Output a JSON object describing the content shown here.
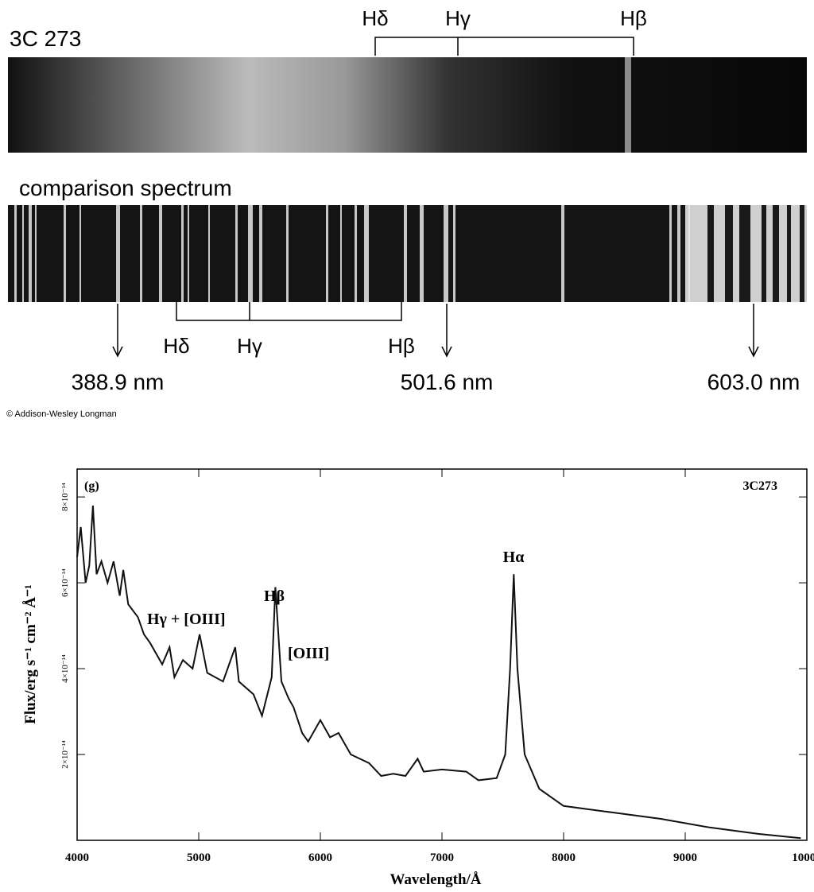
{
  "figure": {
    "top_label": "3C 273",
    "top_lines": [
      "Hδ",
      "Hγ",
      "Hβ"
    ],
    "comparison_label": "comparison spectrum",
    "comparison_lines": [
      "Hδ",
      "Hγ",
      "Hβ"
    ],
    "reference_lines": [
      "388.9 nm",
      "501.6 nm",
      "603.0 nm"
    ],
    "credit": "© Addison-Wesley Longman"
  },
  "chart_data": {
    "type": "line",
    "xlabel": "Wavelength/Å",
    "ylabel": "Flux/erg s⁻¹ cm⁻² Å⁻¹",
    "annotations": [
      "(g)",
      "3C273",
      "Hγ + [OIII]",
      "Hβ",
      "[OIII]",
      "Hα"
    ],
    "color": "#111111",
    "x": [
      4000,
      4030,
      4070,
      4100,
      4130,
      4160,
      4200,
      4250,
      4300,
      4350,
      4380,
      4420,
      4500,
      4550,
      4600,
      4700,
      4760,
      4800,
      4870,
      4950,
      5007,
      5070,
      5200,
      5300,
      5330,
      5450,
      5520,
      5600,
      5630,
      5680,
      5740,
      5780,
      5850,
      5900,
      6000,
      6080,
      6150,
      6250,
      6400,
      6500,
      6600,
      6700,
      6800,
      6850,
      7000,
      7200,
      7300,
      7450,
      7520,
      7560,
      7590,
      7620,
      7680,
      7800,
      8000,
      8400,
      8800,
      9200,
      9600,
      9950
    ],
    "values": [
      6.6e-14,
      7.3e-14,
      6e-14,
      6.4e-14,
      7.8e-14,
      6.2e-14,
      6.5e-14,
      6e-14,
      6.5e-14,
      5.7e-14,
      6.3e-14,
      5.5e-14,
      5.2e-14,
      4.8e-14,
      4.6e-14,
      4.1e-14,
      4.5e-14,
      3.8e-14,
      4.2e-14,
      4e-14,
      4.8e-14,
      3.9e-14,
      3.7e-14,
      4.5e-14,
      3.7e-14,
      3.4e-14,
      2.9e-14,
      3.8e-14,
      5.9e-14,
      3.7e-14,
      3.3e-14,
      3.1e-14,
      2.5e-14,
      2.3e-14,
      2.8e-14,
      2.4e-14,
      2.5e-14,
      2e-14,
      1.8e-14,
      1.5e-14,
      1.55e-14,
      1.5e-14,
      1.9e-14,
      1.6e-14,
      1.65e-14,
      1.6e-14,
      1.4e-14,
      1.45e-14,
      2e-14,
      4e-14,
      6.2e-14,
      4e-14,
      2e-14,
      1.2e-14,
      8e-15,
      6.5e-15,
      5e-15,
      3e-15,
      1.5e-15,
      5e-16
    ],
    "xlim": [
      4000,
      10000
    ],
    "xticks": [
      4000,
      5000,
      6000,
      7000,
      8000,
      9000,
      10000
    ],
    "ylim": [
      0,
      8.65e-14
    ],
    "yticks": [
      {
        "value": 2e-14,
        "label": "2×10⁻¹⁴"
      },
      {
        "value": 4e-14,
        "label": "4×10⁻¹⁴"
      },
      {
        "value": 6e-14,
        "label": "6×10⁻¹⁴"
      },
      {
        "value": 8e-14,
        "label": "8×10⁻¹⁴"
      }
    ]
  }
}
